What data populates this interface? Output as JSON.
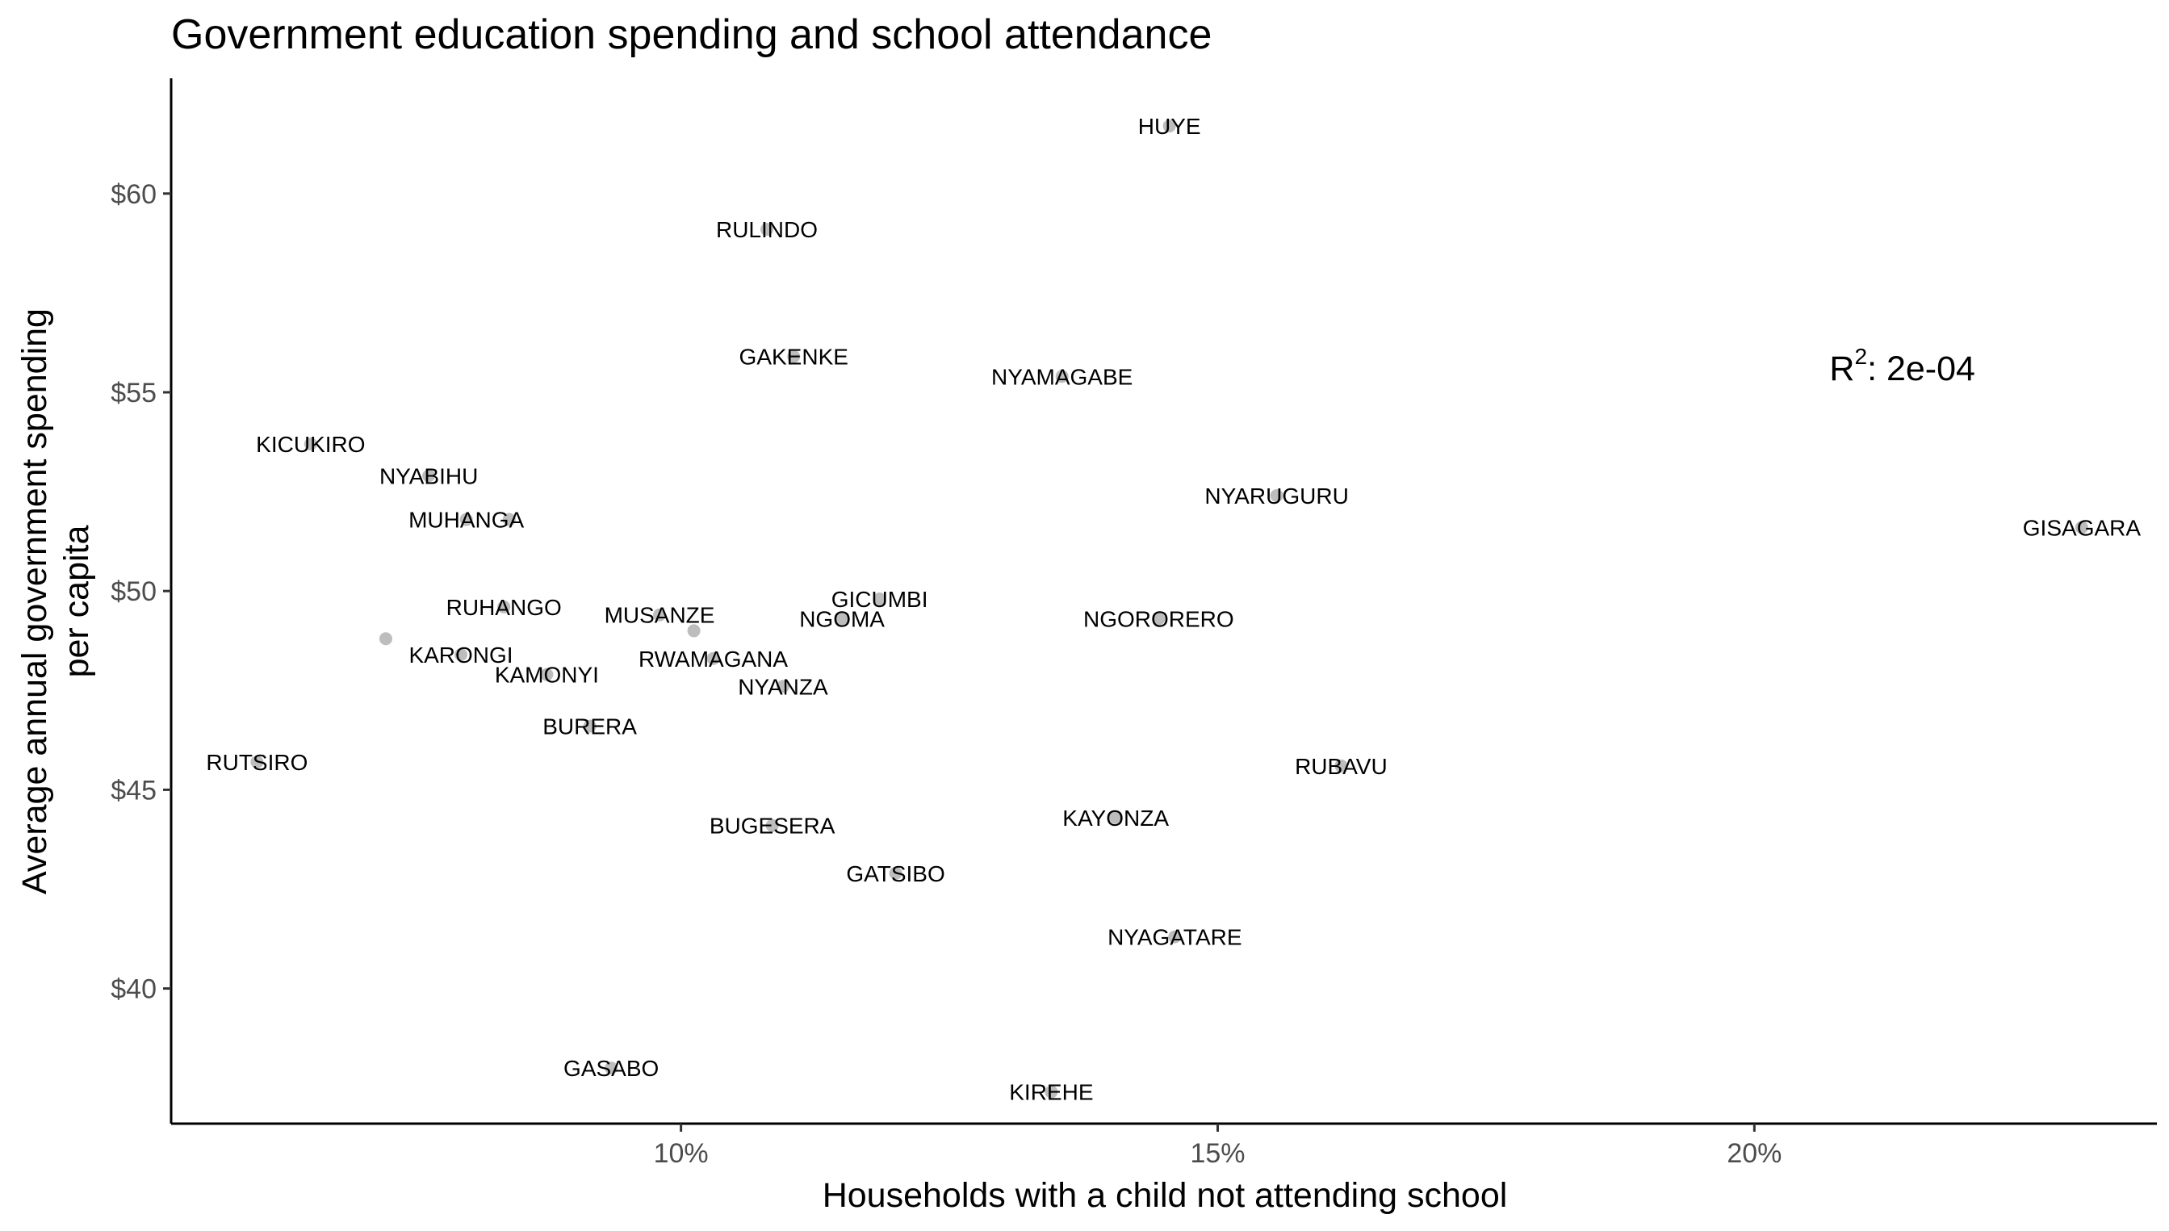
{
  "chart_data": {
    "type": "scatter",
    "title": "Government education spending and school attendance",
    "xlabel": "Households with a child not attending school",
    "ylabel_lines": [
      "Average annual government spending",
      "per capita"
    ],
    "xlim": [
      0.0525,
      0.2375
    ],
    "ylim": [
      36.6,
      62.9
    ],
    "x_ticks": [
      {
        "value": 0.1,
        "label": "10%"
      },
      {
        "value": 0.15,
        "label": "15%"
      },
      {
        "value": 0.2,
        "label": "20%"
      }
    ],
    "y_ticks": [
      {
        "value": 40,
        "label": "$40"
      },
      {
        "value": 45,
        "label": "$45"
      },
      {
        "value": 50,
        "label": "$50"
      },
      {
        "value": 55,
        "label": "$55"
      },
      {
        "value": 60,
        "label": "$60"
      }
    ],
    "grid": false,
    "legend": "none",
    "point_color": "#bdbdbd",
    "annotation": {
      "base": "R",
      "superscript": "2",
      "text": ": 2e-04",
      "x": 0.207,
      "y": 55.3
    },
    "points": [
      {
        "label": "HUYE",
        "x": 0.1455,
        "y": 61.7
      },
      {
        "label": "RULINDO",
        "x": 0.108,
        "y": 59.1
      },
      {
        "label": "GAKENKE",
        "x": 0.1105,
        "y": 55.9
      },
      {
        "label": "NYAMAGABE",
        "x": 0.1355,
        "y": 55.4
      },
      {
        "label": "KICUKIRO",
        "x": 0.0655,
        "y": 53.7
      },
      {
        "label": "NYABIHU",
        "x": 0.0765,
        "y": 52.9
      },
      {
        "label": "MUHANGA",
        "x": 0.08,
        "y": 51.8
      },
      {
        "label": "",
        "x": 0.084,
        "y": 51.8
      },
      {
        "label": "NYARUGURU",
        "x": 0.1555,
        "y": 52.4
      },
      {
        "label": "GISAGARA",
        "x": 0.2305,
        "y": 51.6
      },
      {
        "label": "RUHANGO",
        "x": 0.0835,
        "y": 49.6
      },
      {
        "label": "MUSANZE",
        "x": 0.098,
        "y": 49.4
      },
      {
        "label": "GICUMBI",
        "x": 0.1185,
        "y": 49.8
      },
      {
        "label": "NGOMA",
        "x": 0.115,
        "y": 49.3
      },
      {
        "label": "NGORORERO",
        "x": 0.1445,
        "y": 49.3
      },
      {
        "label": "",
        "x": 0.0725,
        "y": 48.8
      },
      {
        "label": "",
        "x": 0.1012,
        "y": 49.0
      },
      {
        "label": "KARONGI",
        "x": 0.0795,
        "y": 48.4
      },
      {
        "label": "RWAMAGANA",
        "x": 0.103,
        "y": 48.3
      },
      {
        "label": "KAMONYI",
        "x": 0.0875,
        "y": 47.9
      },
      {
        "label": "NYANZA",
        "x": 0.1095,
        "y": 47.6
      },
      {
        "label": "BURERA",
        "x": 0.0915,
        "y": 46.6
      },
      {
        "label": "RUTSIRO",
        "x": 0.0605,
        "y": 45.7
      },
      {
        "label": "RUBAVU",
        "x": 0.1615,
        "y": 45.6
      },
      {
        "label": "KAYONZA",
        "x": 0.1405,
        "y": 44.3
      },
      {
        "label": "BUGESERA",
        "x": 0.1085,
        "y": 44.1
      },
      {
        "label": "GATSIBO",
        "x": 0.12,
        "y": 42.9
      },
      {
        "label": "NYAGATARE",
        "x": 0.146,
        "y": 41.3
      },
      {
        "label": "GASABO",
        "x": 0.0935,
        "y": 38.0
      },
      {
        "label": "KIREHE",
        "x": 0.1345,
        "y": 37.4
      }
    ]
  }
}
